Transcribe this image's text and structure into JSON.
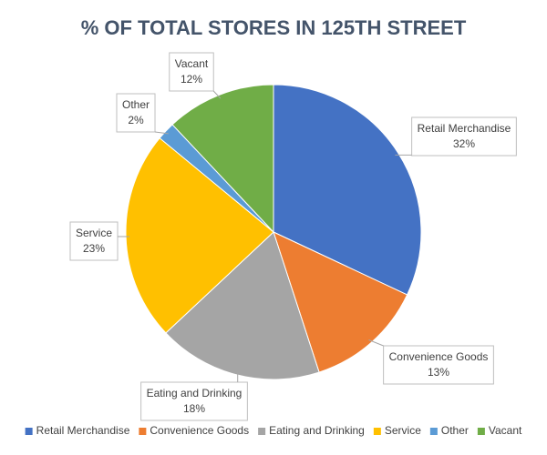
{
  "chart_data": {
    "type": "pie",
    "title": "% OF TOTAL STORES IN 125TH STREET",
    "categories": [
      "Retail Merchandise",
      "Convenience Goods",
      "Eating and Drinking",
      "Service",
      "Other",
      "Vacant"
    ],
    "values": [
      32,
      13,
      18,
      23,
      2,
      12
    ],
    "value_labels": [
      "32%",
      "13%",
      "18%",
      "23%",
      "2%",
      "12%"
    ],
    "colors": [
      "#4472c4",
      "#ed7d31",
      "#a5a5a5",
      "#ffc000",
      "#5b9bd5",
      "#70ad47"
    ],
    "legend": "bottom"
  }
}
